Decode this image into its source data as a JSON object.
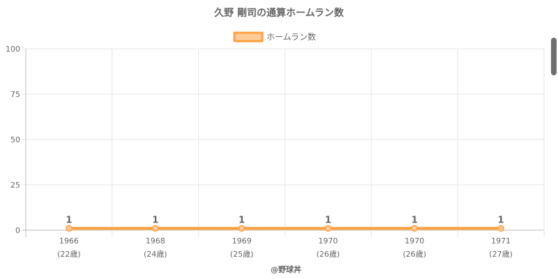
{
  "chart_data": {
    "type": "line",
    "title": "久野 剛司の通算ホームラン数",
    "categories": [
      "1966",
      "1968",
      "1969",
      "1970",
      "1970",
      "1971"
    ],
    "category_sublabels": [
      "(22歳)",
      "(24歳)",
      "(25歳)",
      "(26歳)",
      "(26歳)",
      "(27歳)"
    ],
    "series": [
      {
        "name": "ホームラン数",
        "values": [
          1,
          1,
          1,
          1,
          1,
          1
        ]
      }
    ],
    "ylim": [
      0,
      100
    ],
    "yticks": [
      0,
      25,
      50,
      75,
      100
    ],
    "grid": true,
    "legend": "top-center",
    "colors": {
      "line": "#ff9f40",
      "fill": "#ffcc99",
      "grid": "#e6e6e6",
      "axis": "#bbbbbb"
    }
  },
  "credit": "@野球丼"
}
